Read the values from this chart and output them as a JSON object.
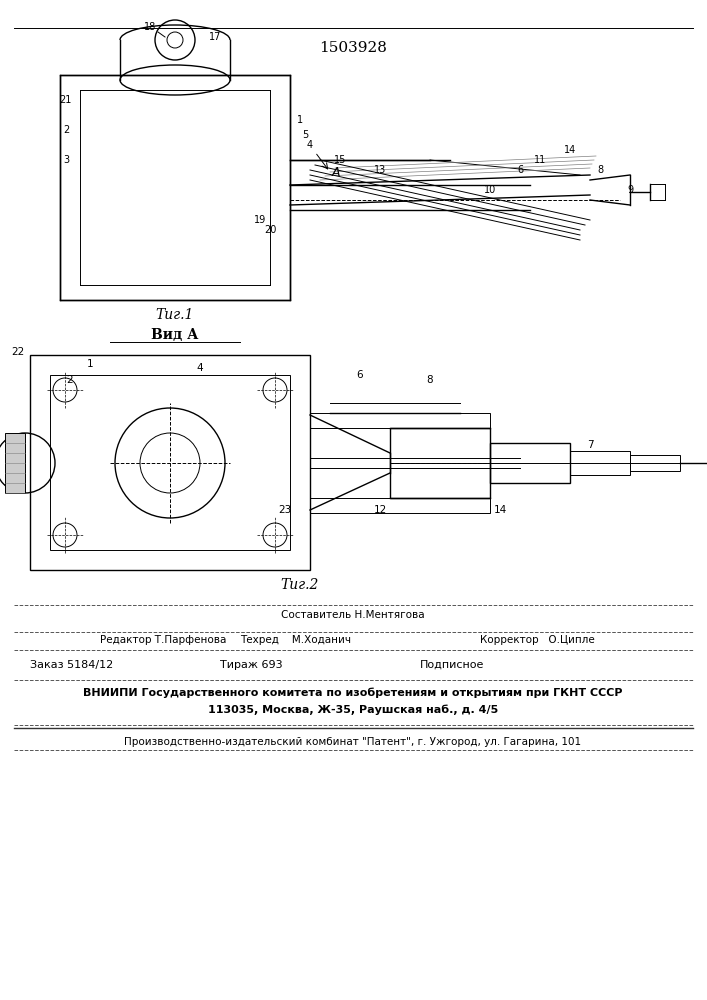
{
  "patent_number": "1503928",
  "fig1_label": "Τиг.1",
  "fig2_label": "Τиг.2",
  "view_label": "Вид А",
  "footer_line1_left": "Редактор Т.Парфенова",
  "footer_line1_center": "Техред    М.Ходанич",
  "footer_line1_right": "Корректор   О.Ципле",
  "footer_composer": "Составитель Н.Ментягова",
  "footer_order": "Заказ 5184/12",
  "footer_tiraz": "Тираж 693",
  "footer_podp": "Подписное",
  "footer_vniip": "ВНИИПИ Государственного комитета по изобретениям и открытиям при ГКНТ СССР",
  "footer_address": "113035, Москва, Ж-35, Раушская наб., д. 4/5",
  "footer_patent": "Производственно-издательский комбинат \"Патент\", г. Ужгород, ул. Гагарина, 101",
  "bg_color": "#ffffff",
  "line_color": "#000000",
  "text_color": "#000000"
}
